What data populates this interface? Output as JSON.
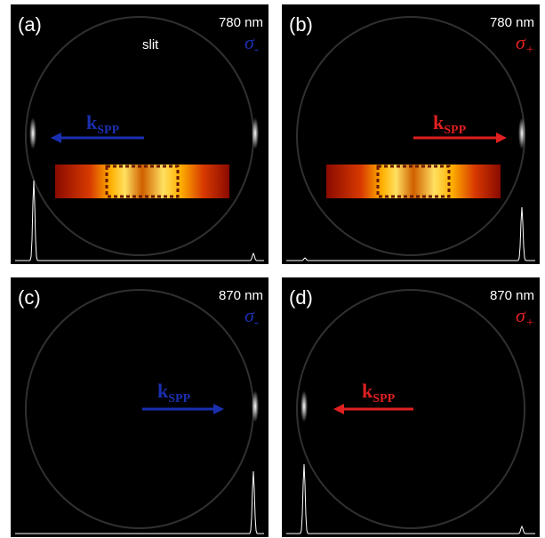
{
  "panels": [
    {
      "label": "(a)",
      "wavelength": "780 nm",
      "polarization": {
        "symbol": "σ",
        "subscript": "-"
      },
      "arrow": {
        "symbol": "k",
        "subscript": "SPP"
      },
      "slit_label": "slit"
    },
    {
      "label": "(b)",
      "wavelength": "780 nm",
      "polarization": {
        "symbol": "σ",
        "subscript": "+"
      },
      "arrow": {
        "symbol": "k",
        "subscript": "SPP"
      }
    },
    {
      "label": "(c)",
      "wavelength": "870 nm",
      "polarization": {
        "symbol": "σ",
        "subscript": "-"
      },
      "arrow": {
        "symbol": "k",
        "subscript": "SPP"
      }
    },
    {
      "label": "(d)",
      "wavelength": "870 nm",
      "polarization": {
        "symbol": "σ",
        "subscript": "+"
      },
      "arrow": {
        "symbol": "k",
        "subscript": "SPP"
      }
    }
  ]
}
